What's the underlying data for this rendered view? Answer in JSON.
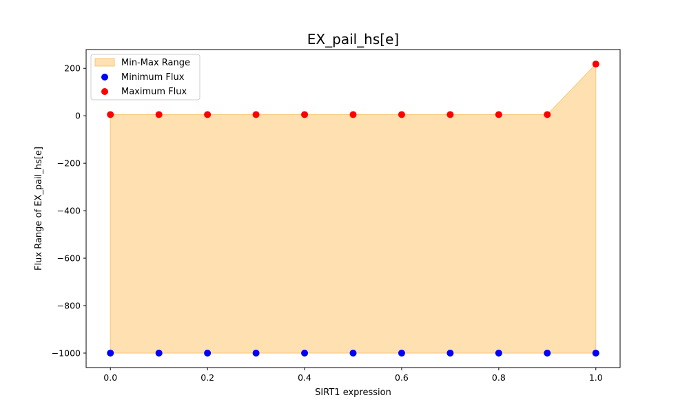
{
  "chart_data": {
    "type": "scatter",
    "title": "EX_pail_hs[e]",
    "xlabel": "SIRT1 expression",
    "ylabel": "Flux Range of EX_pail_hs[e]",
    "x": [
      0.0,
      0.1,
      0.2,
      0.3,
      0.4,
      0.5,
      0.6,
      0.7,
      0.8,
      0.9,
      1.0
    ],
    "series": [
      {
        "name": "Minimum Flux",
        "color": "#0000ff",
        "values": [
          -1000,
          -1000,
          -1000,
          -1000,
          -1000,
          -1000,
          -1000,
          -1000,
          -1000,
          -1000,
          -1000
        ]
      },
      {
        "name": "Maximum Flux",
        "color": "#ff0000",
        "values": [
          5,
          5,
          5,
          5,
          5,
          5,
          5,
          5,
          5,
          5,
          218
        ]
      }
    ],
    "fill": {
      "name": "Min-Max Range",
      "color": "#ffe0b0",
      "edge_color": "#f5c97a"
    },
    "xlim": [
      -0.05,
      1.05
    ],
    "ylim": [
      -1061,
      279
    ],
    "xticks": [
      0.0,
      0.2,
      0.4,
      0.6,
      0.8,
      1.0
    ],
    "xtick_labels": [
      "0.0",
      "0.2",
      "0.4",
      "0.6",
      "0.8",
      "1.0"
    ],
    "yticks": [
      200,
      0,
      -200,
      -400,
      -600,
      -800,
      -1000
    ],
    "ytick_labels": [
      "200",
      "0",
      "−200",
      "−400",
      "−600",
      "−800",
      "−1000"
    ],
    "grid": false,
    "legend_position": "upper-left"
  }
}
